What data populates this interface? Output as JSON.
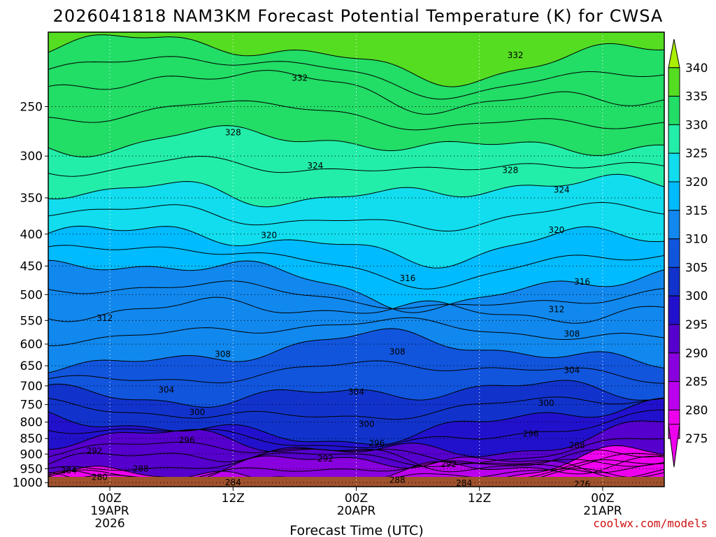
{
  "chart_data": {
    "type": "contour",
    "title": "2026041818 NAM3KM Forecast Potential Temperature (K) for CWSA",
    "xlabel": "Forecast Time (UTC)",
    "credit": "coolwx.com/models",
    "x_ticks": [
      {
        "hour": 6,
        "line1": "00Z",
        "line2": "19APR",
        "line3": "2026"
      },
      {
        "hour": 18,
        "line1": "12Z",
        "line2": "",
        "line3": ""
      },
      {
        "hour": 30,
        "line1": "00Z",
        "line2": "20APR",
        "line3": ""
      },
      {
        "hour": 42,
        "line1": "12Z",
        "line2": "",
        "line3": ""
      },
      {
        "hour": 54,
        "line1": "00Z",
        "line2": "21APR",
        "line3": ""
      }
    ],
    "x_range_hours": [
      0,
      60
    ],
    "y_axis": "pressure_hPa",
    "y_range": [
      1015,
      190
    ],
    "y_ticks": [
      "250",
      "300",
      "350",
      "400",
      "450",
      "500",
      "550",
      "600",
      "650",
      "700",
      "750",
      "800",
      "850",
      "900",
      "950",
      "1000"
    ],
    "colorbar": {
      "labels": [
        "340",
        "335",
        "330",
        "325",
        "320",
        "315",
        "310",
        "305",
        "300",
        "295",
        "290",
        "285",
        "280",
        "275"
      ],
      "colors": [
        "#aaee00",
        "#55dd22",
        "#22dd66",
        "#22eeaa",
        "#11ddee",
        "#00bbff",
        "#1188ee",
        "#1155dd",
        "#1133cc",
        "#2211cc",
        "#5500cc",
        "#8800dd",
        "#bb00ee",
        "#ee00ee"
      ]
    },
    "isentrope_profile_hPa": [
      {
        "theta": 276,
        "p": 1005
      },
      {
        "theta": 280,
        "p": 995
      },
      {
        "theta": 284,
        "p": 975
      },
      {
        "theta": 288,
        "p": 955
      },
      {
        "theta": 292,
        "p": 920
      },
      {
        "theta": 296,
        "p": 870
      },
      {
        "theta": 300,
        "p": 815
      },
      {
        "theta": 304,
        "p": 720
      },
      {
        "theta": 308,
        "p": 620
      },
      {
        "theta": 312,
        "p": 530
      },
      {
        "theta": 316,
        "p": 470
      },
      {
        "theta": 320,
        "p": 410
      },
      {
        "theta": 324,
        "p": 340
      },
      {
        "theta": 328,
        "p": 285
      },
      {
        "theta": 332,
        "p": 235
      },
      {
        "theta": 336,
        "p": 205
      }
    ],
    "contour_labels": [
      {
        "text": "332",
        "hour": 45.5,
        "p": 207
      },
      {
        "text": "332",
        "hour": 24.5,
        "p": 225
      },
      {
        "text": "328",
        "hour": 18,
        "p": 275
      },
      {
        "text": "324",
        "hour": 26,
        "p": 311
      },
      {
        "text": "328",
        "hour": 45,
        "p": 316
      },
      {
        "text": "324",
        "hour": 50,
        "p": 340
      },
      {
        "text": "320",
        "hour": 21.5,
        "p": 402
      },
      {
        "text": "320",
        "hour": 49.5,
        "p": 394
      },
      {
        "text": "316",
        "hour": 35,
        "p": 471
      },
      {
        "text": "316",
        "hour": 52,
        "p": 477
      },
      {
        "text": "312",
        "hour": 5.5,
        "p": 545
      },
      {
        "text": "312",
        "hour": 49.5,
        "p": 528
      },
      {
        "text": "308",
        "hour": 17,
        "p": 623
      },
      {
        "text": "308",
        "hour": 34,
        "p": 617
      },
      {
        "text": "308",
        "hour": 51,
        "p": 578
      },
      {
        "text": "304",
        "hour": 11.5,
        "p": 710
      },
      {
        "text": "304",
        "hour": 30,
        "p": 716
      },
      {
        "text": "304",
        "hour": 51,
        "p": 661
      },
      {
        "text": "300",
        "hour": 14.5,
        "p": 771
      },
      {
        "text": "300",
        "hour": 31,
        "p": 806
      },
      {
        "text": "300",
        "hour": 48.5,
        "p": 746
      },
      {
        "text": "296",
        "hour": 13.5,
        "p": 855
      },
      {
        "text": "296",
        "hour": 32,
        "p": 865
      },
      {
        "text": "296",
        "hour": 47,
        "p": 836
      },
      {
        "text": "292",
        "hour": 4.5,
        "p": 890
      },
      {
        "text": "292",
        "hour": 27,
        "p": 915
      },
      {
        "text": "292",
        "hour": 39,
        "p": 935
      },
      {
        "text": "288",
        "hour": 51.5,
        "p": 872
      },
      {
        "text": "288",
        "hour": 9,
        "p": 950
      },
      {
        "text": "288",
        "hour": 34,
        "p": 990
      },
      {
        "text": "284",
        "hour": 2,
        "p": 957
      },
      {
        "text": "284",
        "hour": 18,
        "p": 1000
      },
      {
        "text": "284",
        "hour": 40.5,
        "p": 1002
      },
      {
        "text": "280",
        "hour": 5,
        "p": 980
      },
      {
        "text": "276",
        "hour": 52,
        "p": 1006
      }
    ]
  }
}
